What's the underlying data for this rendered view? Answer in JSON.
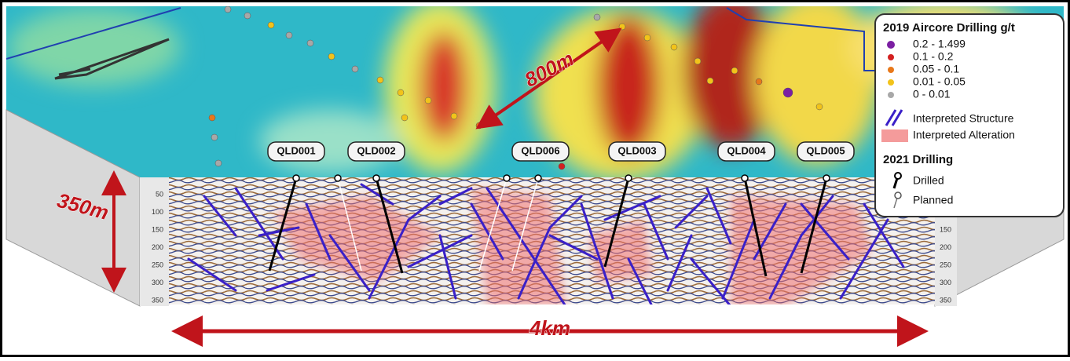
{
  "legend": {
    "title": "2019 Aircore Drilling g/t",
    "grades": [
      {
        "label": "0.2 - 1.499",
        "color": "#7b1fa2"
      },
      {
        "label": "0.1 - 0.2",
        "color": "#d32020"
      },
      {
        "label": "0.05 - 0.1",
        "color": "#e8781a"
      },
      {
        "label": "0.01 - 0.05",
        "color": "#f2c31a"
      },
      {
        "label": "0 - 0.01",
        "color": "#a8a8a8"
      }
    ],
    "structure": "Interpreted Structure",
    "alteration": "Interpreted Alteration",
    "drilling_title": "2021 Drilling",
    "drilled": "Drilled",
    "planned": "Planned"
  },
  "holes": [
    "QLD001",
    "QLD002",
    "QLD006",
    "QLD003",
    "QLD004",
    "QLD005"
  ],
  "scale": {
    "width": "800m",
    "depth": "350m",
    "length": "4km"
  },
  "depth_ticks": [
    50,
    100,
    150,
    200,
    250,
    300,
    350
  ]
}
